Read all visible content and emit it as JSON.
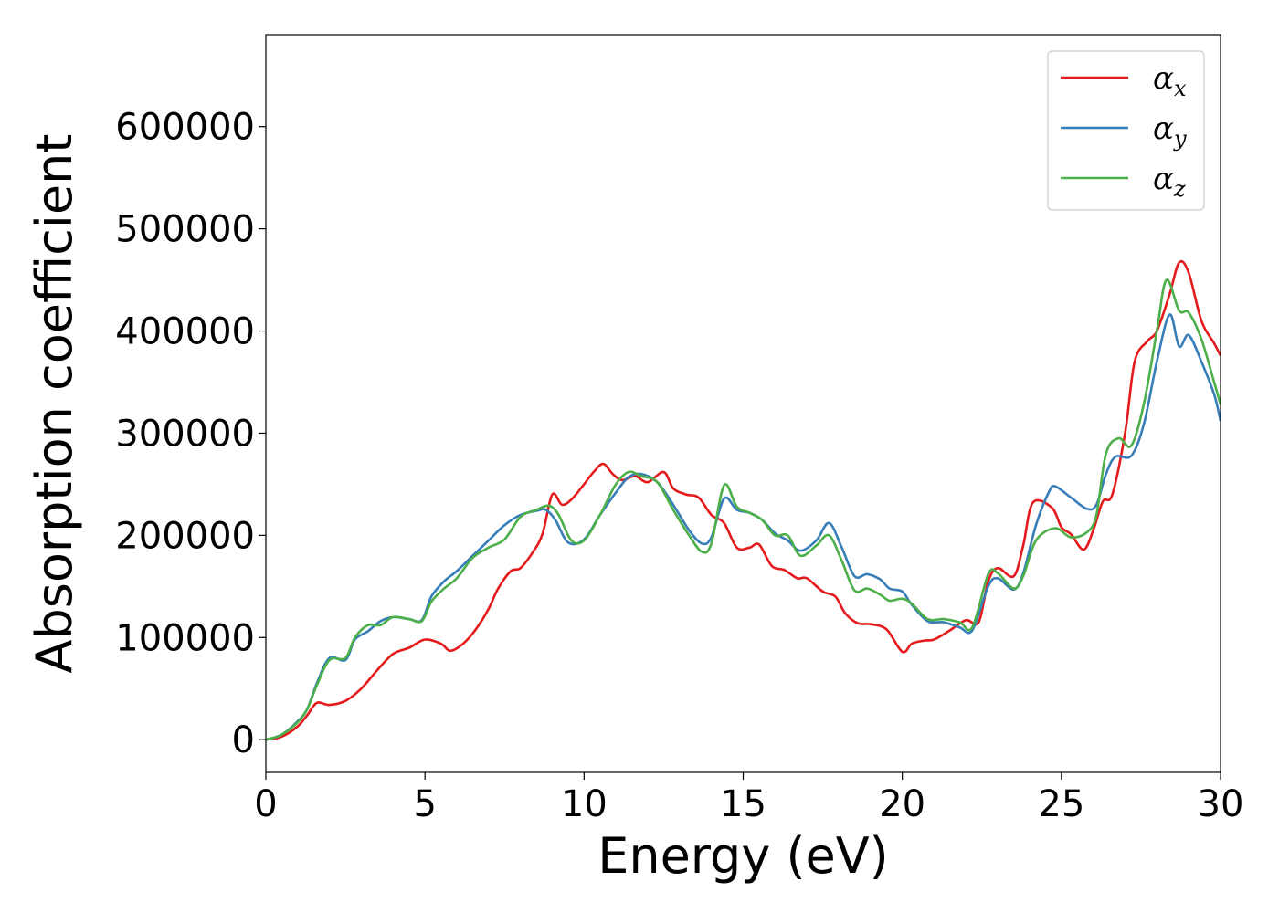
{
  "chart_data": {
    "type": "line",
    "title": "",
    "xlabel": "Energy (eV)",
    "ylabel": "Absorption coefficient",
    "xlim": [
      0,
      30
    ],
    "ylim": [
      -32000,
      690000
    ],
    "x_ticks": [
      0,
      5,
      10,
      15,
      20,
      25,
      30
    ],
    "y_ticks": [
      0,
      100000,
      200000,
      300000,
      400000,
      500000,
      600000
    ],
    "grid": false,
    "legend_position": "top-right",
    "series": [
      {
        "name": "α",
        "name_subscript": "x",
        "color": "#e41a1c",
        "points": [
          [
            0,
            0
          ],
          [
            0.5,
            3000
          ],
          [
            1,
            13000
          ],
          [
            1.3,
            24000
          ],
          [
            1.6,
            36000
          ],
          [
            2,
            34000
          ],
          [
            2.5,
            38000
          ],
          [
            3,
            50000
          ],
          [
            3.5,
            68000
          ],
          [
            4,
            84000
          ],
          [
            4.5,
            90000
          ],
          [
            5,
            98000
          ],
          [
            5.5,
            94000
          ],
          [
            5.8,
            87000
          ],
          [
            6.2,
            94000
          ],
          [
            6.6,
            108000
          ],
          [
            7,
            128000
          ],
          [
            7.3,
            148000
          ],
          [
            7.7,
            165000
          ],
          [
            8,
            168000
          ],
          [
            8.4,
            184000
          ],
          [
            8.7,
            202000
          ],
          [
            9,
            240000
          ],
          [
            9.3,
            230000
          ],
          [
            9.6,
            235000
          ],
          [
            10,
            250000
          ],
          [
            10.3,
            262000
          ],
          [
            10.6,
            270000
          ],
          [
            10.9,
            260000
          ],
          [
            11.2,
            254000
          ],
          [
            11.6,
            258000
          ],
          [
            12,
            252000
          ],
          [
            12.5,
            262000
          ],
          [
            12.8,
            246000
          ],
          [
            13.2,
            240000
          ],
          [
            13.6,
            237000
          ],
          [
            14,
            220000
          ],
          [
            14.4,
            212000
          ],
          [
            14.8,
            188000
          ],
          [
            15.2,
            188000
          ],
          [
            15.5,
            191000
          ],
          [
            15.9,
            170000
          ],
          [
            16.3,
            166000
          ],
          [
            16.7,
            158000
          ],
          [
            17,
            158000
          ],
          [
            17.5,
            145000
          ],
          [
            17.9,
            140000
          ],
          [
            18.2,
            124000
          ],
          [
            18.6,
            114000
          ],
          [
            19,
            113000
          ],
          [
            19.5,
            108000
          ],
          [
            20,
            86000
          ],
          [
            20.3,
            94000
          ],
          [
            20.7,
            97000
          ],
          [
            21,
            98000
          ],
          [
            21.5,
            107000
          ],
          [
            22,
            117000
          ],
          [
            22.4,
            115000
          ],
          [
            22.7,
            155000
          ],
          [
            23,
            168000
          ],
          [
            23.5,
            160000
          ],
          [
            23.8,
            190000
          ],
          [
            24.1,
            232000
          ],
          [
            24.7,
            227000
          ],
          [
            25,
            208000
          ],
          [
            25.3,
            201000
          ],
          [
            25.7,
            186000
          ],
          [
            26,
            205000
          ],
          [
            26.3,
            233000
          ],
          [
            26.6,
            240000
          ],
          [
            27,
            300000
          ],
          [
            27.3,
            370000
          ],
          [
            27.7,
            390000
          ],
          [
            28,
            400000
          ],
          [
            28.4,
            436000
          ],
          [
            28.7,
            467000
          ],
          [
            29,
            457000
          ],
          [
            29.4,
            410000
          ],
          [
            29.8,
            388000
          ],
          [
            30,
            376000
          ]
        ]
      },
      {
        "name": "α",
        "name_subscript": "y",
        "color": "#377eb8",
        "points": [
          [
            0,
            0
          ],
          [
            0.5,
            5000
          ],
          [
            1,
            18000
          ],
          [
            1.3,
            30000
          ],
          [
            1.6,
            55000
          ],
          [
            2,
            80000
          ],
          [
            2.5,
            78000
          ],
          [
            2.8,
            98000
          ],
          [
            3.2,
            106000
          ],
          [
            3.6,
            116000
          ],
          [
            4,
            120000
          ],
          [
            4.5,
            118000
          ],
          [
            4.9,
            117000
          ],
          [
            5.2,
            140000
          ],
          [
            5.6,
            155000
          ],
          [
            6,
            165000
          ],
          [
            6.5,
            180000
          ],
          [
            7,
            195000
          ],
          [
            7.5,
            210000
          ],
          [
            8,
            220000
          ],
          [
            8.5,
            224000
          ],
          [
            8.8,
            225000
          ],
          [
            9.1,
            215000
          ],
          [
            9.5,
            193000
          ],
          [
            10,
            196000
          ],
          [
            10.5,
            220000
          ],
          [
            11,
            242000
          ],
          [
            11.4,
            257000
          ],
          [
            11.8,
            260000
          ],
          [
            12.3,
            252000
          ],
          [
            12.8,
            230000
          ],
          [
            13.3,
            205000
          ],
          [
            13.7,
            192000
          ],
          [
            14,
            198000
          ],
          [
            14.4,
            236000
          ],
          [
            14.8,
            225000
          ],
          [
            15.2,
            222000
          ],
          [
            15.6,
            215000
          ],
          [
            16,
            202000
          ],
          [
            16.4,
            195000
          ],
          [
            16.8,
            185000
          ],
          [
            17.3,
            195000
          ],
          [
            17.7,
            212000
          ],
          [
            18.1,
            188000
          ],
          [
            18.5,
            160000
          ],
          [
            18.9,
            162000
          ],
          [
            19.3,
            157000
          ],
          [
            19.6,
            148000
          ],
          [
            20,
            145000
          ],
          [
            20.3,
            132000
          ],
          [
            20.8,
            116000
          ],
          [
            21.3,
            115000
          ],
          [
            21.8,
            110000
          ],
          [
            22.2,
            107000
          ],
          [
            22.7,
            150000
          ],
          [
            23,
            158000
          ],
          [
            23.5,
            147000
          ],
          [
            23.8,
            163000
          ],
          [
            24.2,
            210000
          ],
          [
            24.6,
            242000
          ],
          [
            24.8,
            248000
          ],
          [
            25.3,
            237000
          ],
          [
            25.8,
            226000
          ],
          [
            26.1,
            230000
          ],
          [
            26.4,
            260000
          ],
          [
            26.7,
            277000
          ],
          [
            27.2,
            278000
          ],
          [
            27.6,
            310000
          ],
          [
            28,
            370000
          ],
          [
            28.4,
            416000
          ],
          [
            28.7,
            385000
          ],
          [
            29,
            396000
          ],
          [
            29.4,
            370000
          ],
          [
            29.8,
            338000
          ],
          [
            30,
            312000
          ]
        ]
      },
      {
        "name": "α",
        "name_subscript": "z",
        "color": "#4daf4a",
        "points": [
          [
            0,
            0
          ],
          [
            0.5,
            5000
          ],
          [
            1,
            17000
          ],
          [
            1.3,
            30000
          ],
          [
            1.6,
            53000
          ],
          [
            2,
            78000
          ],
          [
            2.5,
            80000
          ],
          [
            2.8,
            100000
          ],
          [
            3.2,
            112000
          ],
          [
            3.6,
            112000
          ],
          [
            4,
            120000
          ],
          [
            4.5,
            118000
          ],
          [
            4.9,
            116000
          ],
          [
            5.2,
            135000
          ],
          [
            5.6,
            148000
          ],
          [
            6,
            158000
          ],
          [
            6.5,
            178000
          ],
          [
            7,
            188000
          ],
          [
            7.5,
            196000
          ],
          [
            8,
            218000
          ],
          [
            8.5,
            225000
          ],
          [
            8.9,
            229000
          ],
          [
            9.2,
            220000
          ],
          [
            9.6,
            195000
          ],
          [
            10,
            195000
          ],
          [
            10.5,
            220000
          ],
          [
            11,
            250000
          ],
          [
            11.4,
            262000
          ],
          [
            11.8,
            258000
          ],
          [
            12.3,
            252000
          ],
          [
            12.8,
            225000
          ],
          [
            13.3,
            200000
          ],
          [
            13.7,
            184000
          ],
          [
            14,
            192000
          ],
          [
            14.4,
            249000
          ],
          [
            14.8,
            228000
          ],
          [
            15.2,
            222000
          ],
          [
            15.6,
            215000
          ],
          [
            16,
            200000
          ],
          [
            16.4,
            200000
          ],
          [
            16.8,
            180000
          ],
          [
            17.3,
            190000
          ],
          [
            17.7,
            200000
          ],
          [
            18.1,
            175000
          ],
          [
            18.5,
            146000
          ],
          [
            18.9,
            148000
          ],
          [
            19.3,
            142000
          ],
          [
            19.6,
            136000
          ],
          [
            20,
            138000
          ],
          [
            20.3,
            133000
          ],
          [
            20.8,
            118000
          ],
          [
            21.3,
            118000
          ],
          [
            21.8,
            115000
          ],
          [
            22.2,
            110000
          ],
          [
            22.7,
            162000
          ],
          [
            23,
            163000
          ],
          [
            23.5,
            148000
          ],
          [
            23.8,
            160000
          ],
          [
            24.2,
            195000
          ],
          [
            24.8,
            207000
          ],
          [
            25.3,
            198000
          ],
          [
            25.8,
            203000
          ],
          [
            26.1,
            220000
          ],
          [
            26.4,
            280000
          ],
          [
            26.8,
            295000
          ],
          [
            27.2,
            288000
          ],
          [
            27.6,
            330000
          ],
          [
            28,
            400000
          ],
          [
            28.3,
            450000
          ],
          [
            28.7,
            420000
          ],
          [
            29,
            418000
          ],
          [
            29.4,
            392000
          ],
          [
            29.8,
            350000
          ],
          [
            30,
            328000
          ]
        ]
      }
    ]
  }
}
